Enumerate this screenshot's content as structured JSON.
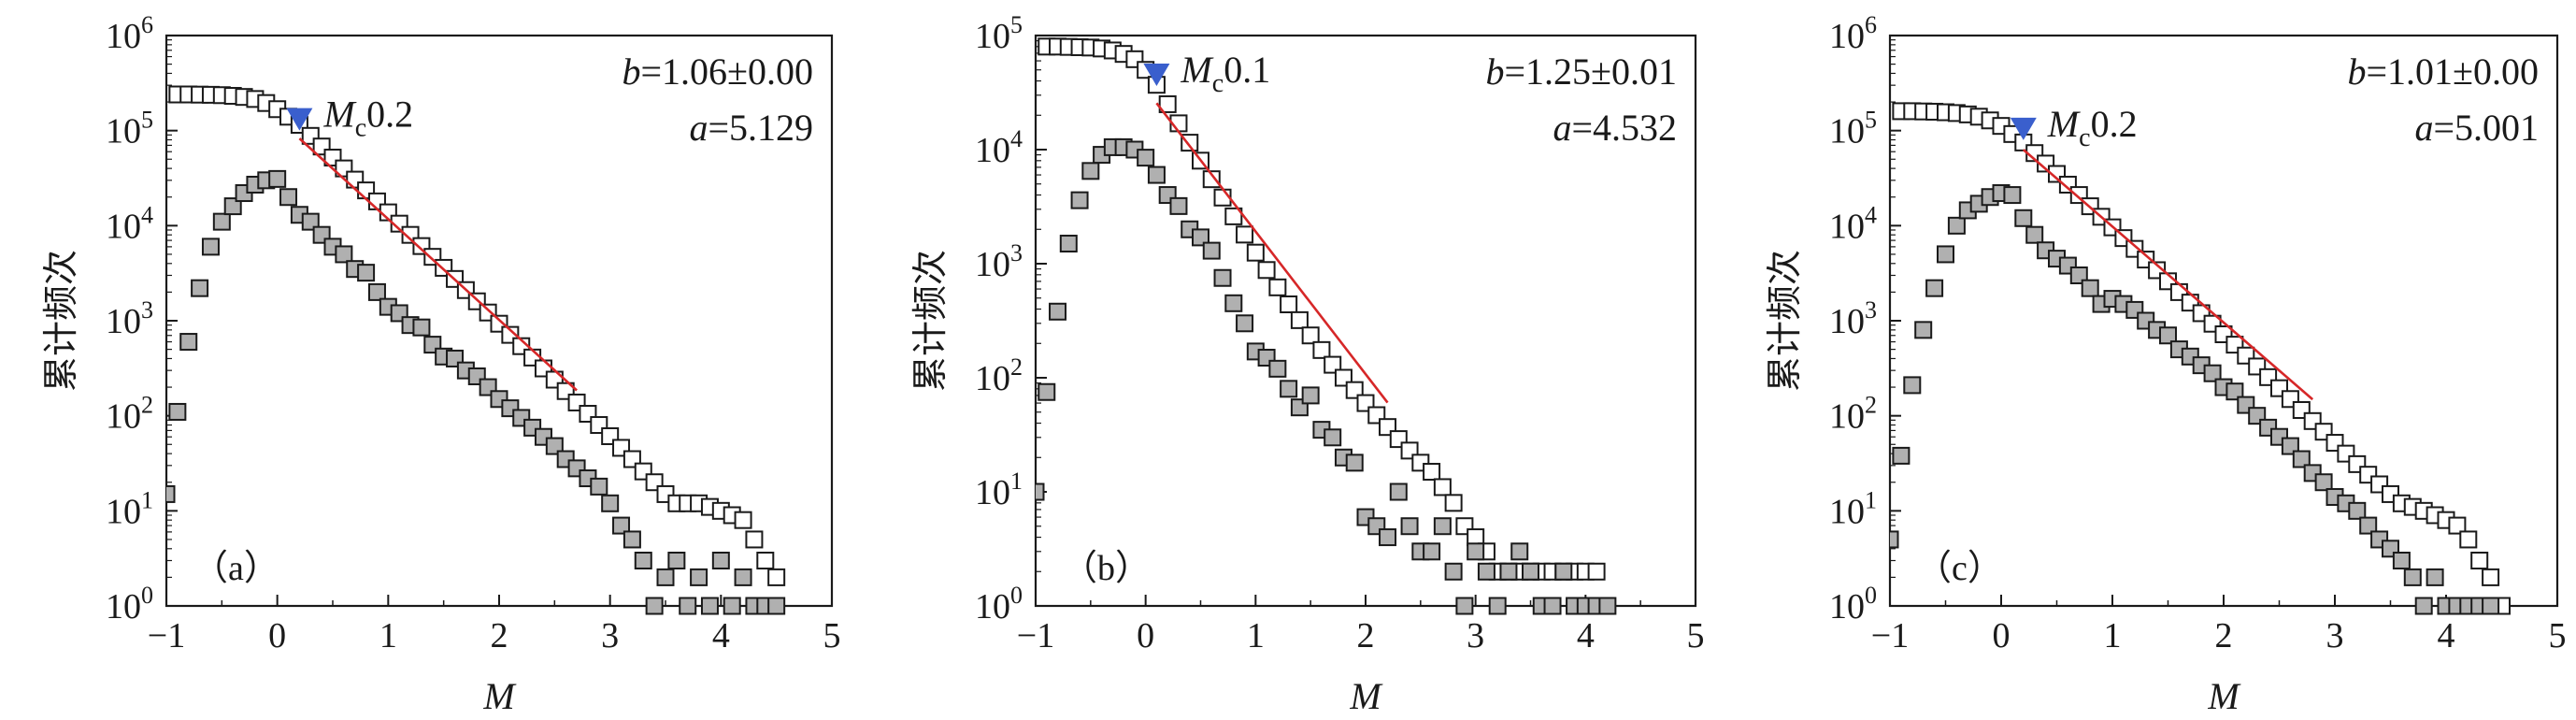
{
  "chart_data": [
    {
      "type": "scatter",
      "panel_label": "（a）",
      "ylabel": "累计频次",
      "xlabel": "M",
      "xlim": [
        -1,
        5
      ],
      "ylim_exp": [
        0,
        6
      ],
      "y_scale": "log",
      "x_ticks": [
        "−1",
        "0",
        "1",
        "2",
        "3",
        "4",
        "5"
      ],
      "y_ticks": [
        [
          "10",
          "0"
        ],
        [
          "10",
          "1"
        ],
        [
          "10",
          "2"
        ],
        [
          "10",
          "3"
        ],
        [
          "10",
          "4"
        ],
        [
          "10",
          "5"
        ],
        [
          "10",
          "6"
        ]
      ],
      "b_text": "b=1.06±0.00",
      "a_text": "a=5.129",
      "mc": {
        "label_main": "M",
        "label_sub": "c",
        "label_val": "0.2",
        "x": 0.2,
        "y": 120000,
        "color": "#3a5fcd"
      },
      "fit_line": {
        "x1": 0.2,
        "x2": 2.7,
        "a": 5.129,
        "b": 1.06,
        "color": "#d62728"
      },
      "series": [
        {
          "style": "open",
          "x": [
            -0.9,
            -0.8,
            -0.7,
            -0.6,
            -0.5,
            -0.4,
            -0.3,
            -0.2,
            -0.1,
            0.0,
            0.1,
            0.2,
            0.3,
            0.4,
            0.5,
            0.6,
            0.7,
            0.8,
            0.9,
            1.0,
            1.1,
            1.2,
            1.3,
            1.4,
            1.5,
            1.6,
            1.7,
            1.8,
            1.9,
            2.0,
            2.1,
            2.2,
            2.3,
            2.4,
            2.5,
            2.6,
            2.7,
            2.8,
            2.9,
            3.0,
            3.1,
            3.2,
            3.3,
            3.4,
            3.5,
            3.6,
            3.7,
            3.8,
            3.9,
            4.0,
            4.1,
            4.2,
            4.3,
            4.4,
            4.5
          ],
          "y": [
            240000,
            240000,
            239000,
            238000,
            236000,
            232000,
            226000,
            215000,
            195000,
            168000,
            140000,
            115000,
            88000,
            68000,
            52000,
            40000,
            30500,
            23500,
            18000,
            13800,
            10500,
            8000,
            6100,
            4700,
            3600,
            2750,
            2100,
            1600,
            1220,
            930,
            710,
            540,
            410,
            315,
            240,
            182,
            138,
            105,
            80,
            61,
            46,
            35,
            26,
            20,
            15,
            12,
            12,
            12,
            11,
            10,
            9,
            8,
            5,
            3,
            2
          ]
        },
        {
          "style": "filled",
          "x": [
            -1.0,
            -0.9,
            -0.8,
            -0.7,
            -0.6,
            -0.5,
            -0.4,
            -0.3,
            -0.2,
            -0.1,
            0.0,
            0.1,
            0.2,
            0.3,
            0.4,
            0.5,
            0.6,
            0.7,
            0.8,
            0.9,
            1.0,
            1.1,
            1.2,
            1.3,
            1.4,
            1.5,
            1.6,
            1.7,
            1.8,
            1.9,
            2.0,
            2.1,
            2.2,
            2.3,
            2.4,
            2.5,
            2.6,
            2.7,
            2.8,
            2.9,
            3.0,
            3.1,
            3.2,
            3.3,
            3.4,
            3.5,
            3.6,
            3.7,
            3.8,
            3.9,
            4.0,
            4.1,
            4.2,
            4.3,
            4.4,
            4.5
          ],
          "y": [
            15,
            110,
            600,
            2200,
            6000,
            11000,
            16000,
            22000,
            27000,
            30000,
            31000,
            20000,
            13000,
            11000,
            8000,
            6000,
            5000,
            3500,
            3200,
            2000,
            1400,
            1200,
            900,
            850,
            560,
            420,
            400,
            300,
            260,
            200,
            150,
            120,
            95,
            75,
            60,
            48,
            35,
            28,
            22,
            18,
            12,
            7,
            5,
            3,
            1,
            2,
            3,
            1,
            2,
            1,
            3,
            1,
            2,
            1,
            1,
            1
          ]
        }
      ]
    },
    {
      "type": "scatter",
      "panel_label": "（b）",
      "ylabel": "累计频次",
      "xlabel": "M",
      "xlim": [
        -1,
        5
      ],
      "ylim_exp": [
        0,
        5
      ],
      "y_scale": "log",
      "x_ticks": [
        "−1",
        "0",
        "1",
        "2",
        "3",
        "4",
        "5"
      ],
      "y_ticks": [
        [
          "10",
          "0"
        ],
        [
          "10",
          "1"
        ],
        [
          "10",
          "2"
        ],
        [
          "10",
          "3"
        ],
        [
          "10",
          "4"
        ],
        [
          "10",
          "5"
        ]
      ],
      "b_text": "b=1.25±0.01",
      "a_text": "a=4.532",
      "mc": {
        "label_main": "M",
        "label_sub": "c",
        "label_val": "0.1",
        "x": 0.1,
        "y": 42000,
        "color": "#3a5fcd"
      },
      "fit_line": {
        "x1": 0.1,
        "x2": 2.2,
        "a": 4.532,
        "b": 1.25,
        "color": "#d62728"
      },
      "series": [
        {
          "style": "open",
          "x": [
            -0.9,
            -0.8,
            -0.7,
            -0.6,
            -0.5,
            -0.4,
            -0.3,
            -0.2,
            -0.1,
            0.0,
            0.1,
            0.2,
            0.3,
            0.4,
            0.5,
            0.6,
            0.7,
            0.8,
            0.9,
            1.0,
            1.1,
            1.2,
            1.3,
            1.4,
            1.5,
            1.6,
            1.7,
            1.8,
            1.9,
            2.0,
            2.1,
            2.2,
            2.3,
            2.4,
            2.5,
            2.6,
            2.7,
            2.8,
            2.9,
            3.0,
            3.1,
            3.2,
            3.3,
            3.4,
            3.5,
            3.6,
            3.7,
            3.8,
            3.9,
            4.0,
            4.1
          ],
          "y": [
            80000,
            80000,
            79500,
            79000,
            78500,
            77000,
            74000,
            69000,
            62000,
            50000,
            37000,
            25000,
            17000,
            11500,
            8000,
            5500,
            3800,
            2600,
            1800,
            1250,
            880,
            620,
            440,
            320,
            235,
            175,
            130,
            100,
            78,
            60,
            47,
            37,
            29,
            23,
            18,
            15,
            11,
            8,
            5,
            4,
            3,
            2,
            2,
            2,
            2,
            2,
            2,
            2,
            2,
            2,
            2
          ]
        },
        {
          "style": "filled",
          "x": [
            -1.0,
            -0.9,
            -0.8,
            -0.7,
            -0.6,
            -0.5,
            -0.4,
            -0.3,
            -0.2,
            -0.1,
            0.0,
            0.1,
            0.2,
            0.3,
            0.4,
            0.5,
            0.6,
            0.7,
            0.8,
            0.9,
            1.0,
            1.1,
            1.2,
            1.3,
            1.4,
            1.5,
            1.6,
            1.7,
            1.8,
            1.9,
            2.0,
            2.1,
            2.2,
            2.3,
            2.4,
            2.5,
            2.6,
            2.7,
            2.8,
            2.9,
            3.0,
            3.1,
            3.2,
            3.3,
            3.4,
            3.5,
            3.6,
            3.7,
            3.8,
            3.9,
            4.0,
            4.1,
            4.2
          ],
          "y": [
            10,
            75,
            380,
            1500,
            3600,
            6500,
            9000,
            10500,
            10500,
            10000,
            8500,
            6000,
            4000,
            3200,
            2000,
            1700,
            1300,
            750,
            450,
            300,
            170,
            150,
            120,
            80,
            55,
            70,
            35,
            30,
            20,
            18,
            6,
            5,
            4,
            10,
            5,
            3,
            3,
            5,
            2,
            1,
            3,
            2,
            1,
            2,
            3,
            2,
            1,
            1,
            2,
            1,
            1,
            1,
            1
          ]
        }
      ]
    },
    {
      "type": "scatter",
      "panel_label": "（c）",
      "ylabel": "累计频次",
      "xlabel": "M",
      "xlim": [
        -1,
        5
      ],
      "ylim_exp": [
        0,
        6
      ],
      "y_scale": "log",
      "x_ticks": [
        "−1",
        "0",
        "1",
        "2",
        "3",
        "4",
        "5"
      ],
      "y_ticks": [
        [
          "10",
          "0"
        ],
        [
          "10",
          "1"
        ],
        [
          "10",
          "2"
        ],
        [
          "10",
          "3"
        ],
        [
          "10",
          "4"
        ],
        [
          "10",
          "5"
        ],
        [
          "10",
          "6"
        ]
      ],
      "b_text": "b=1.01±0.00",
      "a_text": "a=5.001",
      "mc": {
        "label_main": "M",
        "label_sub": "c",
        "label_val": "0.2",
        "x": 0.2,
        "y": 95000,
        "color": "#3a5fcd"
      },
      "fit_line": {
        "x1": 0.2,
        "x2": 2.8,
        "a": 5.001,
        "b": 1.01,
        "color": "#d62728"
      },
      "series": [
        {
          "style": "open",
          "x": [
            -0.9,
            -0.8,
            -0.7,
            -0.6,
            -0.5,
            -0.4,
            -0.3,
            -0.2,
            -0.1,
            0.0,
            0.1,
            0.2,
            0.3,
            0.4,
            0.5,
            0.6,
            0.7,
            0.8,
            0.9,
            1.0,
            1.1,
            1.2,
            1.3,
            1.4,
            1.5,
            1.6,
            1.7,
            1.8,
            1.9,
            2.0,
            2.1,
            2.2,
            2.3,
            2.4,
            2.5,
            2.6,
            2.7,
            2.8,
            2.9,
            3.0,
            3.1,
            3.2,
            3.3,
            3.4,
            3.5,
            3.6,
            3.7,
            3.8,
            3.9,
            4.0,
            4.1,
            4.2,
            4.3,
            4.4,
            4.5
          ],
          "y": [
            160000,
            160000,
            159000,
            158000,
            156000,
            153000,
            148000,
            140000,
            128000,
            112000,
            92000,
            75000,
            58000,
            45000,
            35000,
            27000,
            21000,
            16000,
            12400,
            9600,
            7400,
            5700,
            4400,
            3400,
            2600,
            2000,
            1550,
            1200,
            930,
            720,
            560,
            430,
            330,
            255,
            195,
            150,
            115,
            88,
            68,
            52,
            40,
            31,
            24,
            19,
            15,
            12,
            11,
            10,
            9,
            8,
            7,
            5,
            3,
            2,
            1
          ]
        },
        {
          "style": "filled",
          "x": [
            -1.0,
            -0.9,
            -0.8,
            -0.7,
            -0.6,
            -0.5,
            -0.4,
            -0.3,
            -0.2,
            -0.1,
            0.0,
            0.1,
            0.2,
            0.3,
            0.4,
            0.5,
            0.6,
            0.7,
            0.8,
            0.9,
            1.0,
            1.1,
            1.2,
            1.3,
            1.4,
            1.5,
            1.6,
            1.7,
            1.8,
            1.9,
            2.0,
            2.1,
            2.2,
            2.3,
            2.4,
            2.5,
            2.6,
            2.7,
            2.8,
            2.9,
            3.0,
            3.1,
            3.2,
            3.3,
            3.4,
            3.5,
            3.6,
            3.7,
            3.8,
            3.9,
            4.0,
            4.1,
            4.2,
            4.3,
            4.4
          ],
          "y": [
            5,
            38,
            210,
            800,
            2200,
            5000,
            10000,
            14500,
            17000,
            20000,
            22000,
            21000,
            12000,
            8000,
            5500,
            4500,
            3800,
            3000,
            2200,
            1500,
            1700,
            1500,
            1300,
            1000,
            800,
            700,
            500,
            420,
            340,
            280,
            200,
            180,
            130,
            100,
            75,
            60,
            48,
            35,
            25,
            20,
            14,
            12,
            10,
            7,
            5,
            4,
            3,
            2,
            1,
            2,
            1,
            1,
            1,
            1,
            1
          ]
        }
      ]
    }
  ]
}
